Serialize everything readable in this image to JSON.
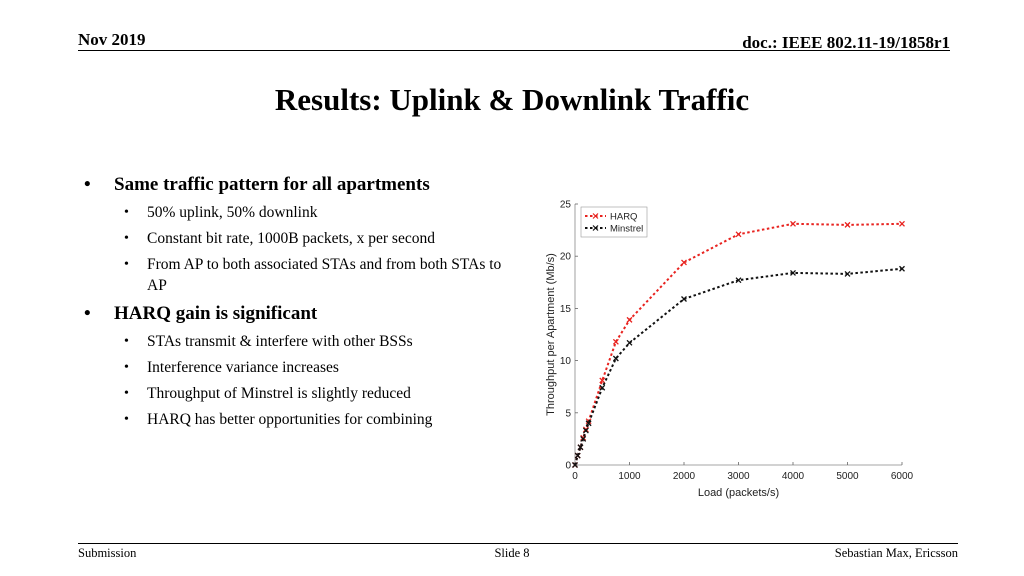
{
  "header": {
    "date": "Nov 2019",
    "doc": "doc.: IEEE 802.11-19/1858r1"
  },
  "title": "Results: Uplink & Downlink Traffic",
  "bullets": [
    {
      "text": "Same traffic pattern for all apartments",
      "sub": [
        "50% uplink, 50% downlink",
        "Constant bit rate, 1000B packets, x per second",
        "From AP to both associated STAs and from both STAs to AP"
      ]
    },
    {
      "text": "HARQ gain is significant",
      "sub": [
        "STAs transmit & interfere with other BSSs",
        "Interference variance increases",
        "Throughput of Minstrel is slightly reduced",
        "HARQ has better opportunities for combining"
      ]
    }
  ],
  "footer": {
    "left": "Submission",
    "center": "Slide 8",
    "right": "Sebastian Max, Ericsson"
  },
  "chart_data": {
    "type": "line",
    "xlabel": "Load (packets/s)",
    "ylabel": "Throughput per Apartment (Mb/s)",
    "xlim": [
      0,
      6000
    ],
    "ylim": [
      0,
      25
    ],
    "xticks": [
      0,
      1000,
      2000,
      3000,
      4000,
      5000,
      6000
    ],
    "yticks": [
      0,
      5,
      10,
      15,
      20,
      25
    ],
    "grid": false,
    "legend": "top-left",
    "series": [
      {
        "name": "HARQ",
        "color": "#e8231f",
        "x": [
          0,
          50,
          100,
          150,
          200,
          250,
          500,
          750,
          1000,
          2000,
          3000,
          4000,
          5000,
          6000
        ],
        "y": [
          0,
          0.9,
          1.7,
          2.6,
          3.4,
          4.2,
          8.1,
          11.8,
          13.9,
          19.4,
          22.1,
          23.1,
          23.0,
          23.1
        ]
      },
      {
        "name": "Minstrel",
        "color": "#111111",
        "x": [
          0,
          50,
          100,
          150,
          200,
          250,
          500,
          750,
          1000,
          2000,
          3000,
          4000,
          5000,
          6000
        ],
        "y": [
          0,
          0.9,
          1.7,
          2.5,
          3.3,
          4.0,
          7.4,
          10.2,
          11.7,
          15.9,
          17.7,
          18.4,
          18.3,
          18.8
        ]
      }
    ]
  }
}
